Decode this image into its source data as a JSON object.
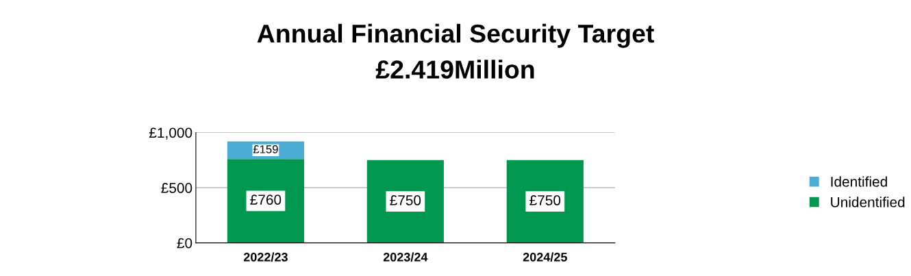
{
  "chart_data": {
    "type": "bar",
    "title": "Annual Financial Security Target",
    "subtitle": "£2.419Million",
    "categories": [
      "2022/23",
      "2023/24",
      "2024/25"
    ],
    "stacked": true,
    "series": [
      {
        "name": "Unidentified",
        "color": "#00974f",
        "values": [
          760,
          750,
          750
        ],
        "value_labels": [
          "£760",
          "£750",
          "£750"
        ]
      },
      {
        "name": "Identified",
        "color": "#4bacd6",
        "values": [
          159,
          null,
          null
        ],
        "value_labels": [
          "£159",
          null,
          null
        ]
      }
    ],
    "ylim": [
      0,
      1000
    ],
    "yticks": [
      {
        "value": 0,
        "label": "£0"
      },
      {
        "value": 500,
        "label": "£500"
      },
      {
        "value": 1000,
        "label": "£1,000"
      }
    ],
    "grid": "y",
    "legend": "right"
  }
}
